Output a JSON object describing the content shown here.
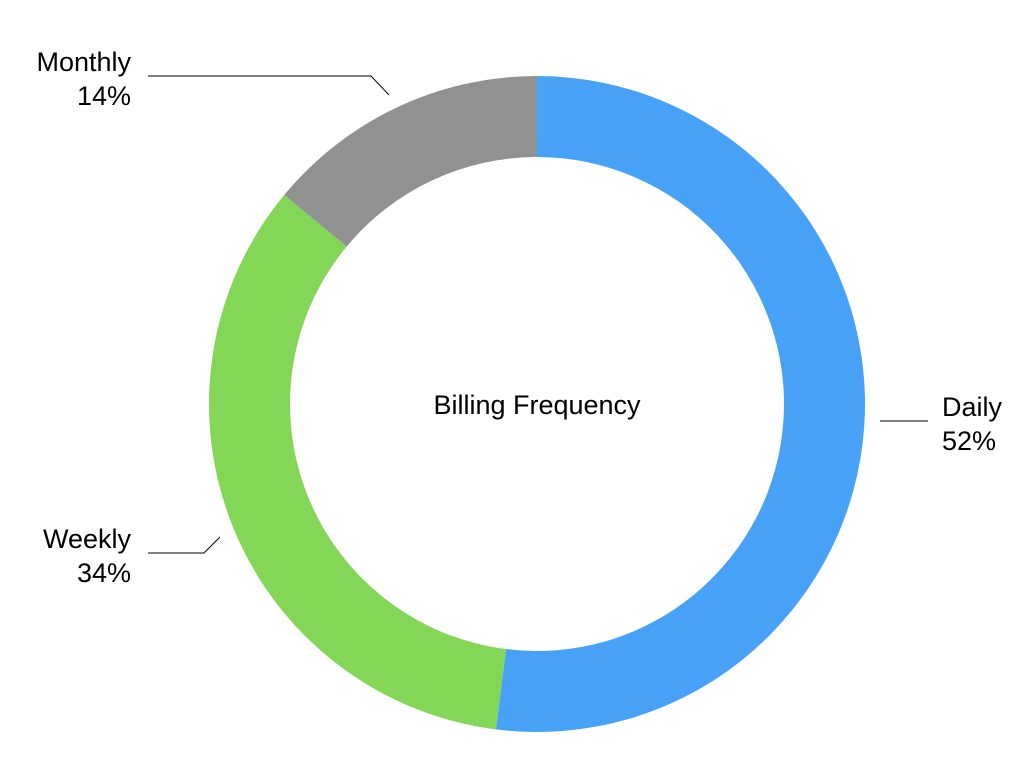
{
  "chart_data": {
    "type": "pie",
    "variant": "donut",
    "title": "Billing Frequency",
    "slices": [
      {
        "name": "Daily",
        "value": 52,
        "label": "52%",
        "color": "#47a2f7"
      },
      {
        "name": "Weekly",
        "value": 34,
        "label": "34%",
        "color": "#83d656"
      },
      {
        "name": "Monthly",
        "value": 14,
        "label": "14%",
        "color": "#919191"
      }
    ],
    "start_angle": "12 o'clock",
    "direction": "clockwise",
    "legend": "none"
  }
}
